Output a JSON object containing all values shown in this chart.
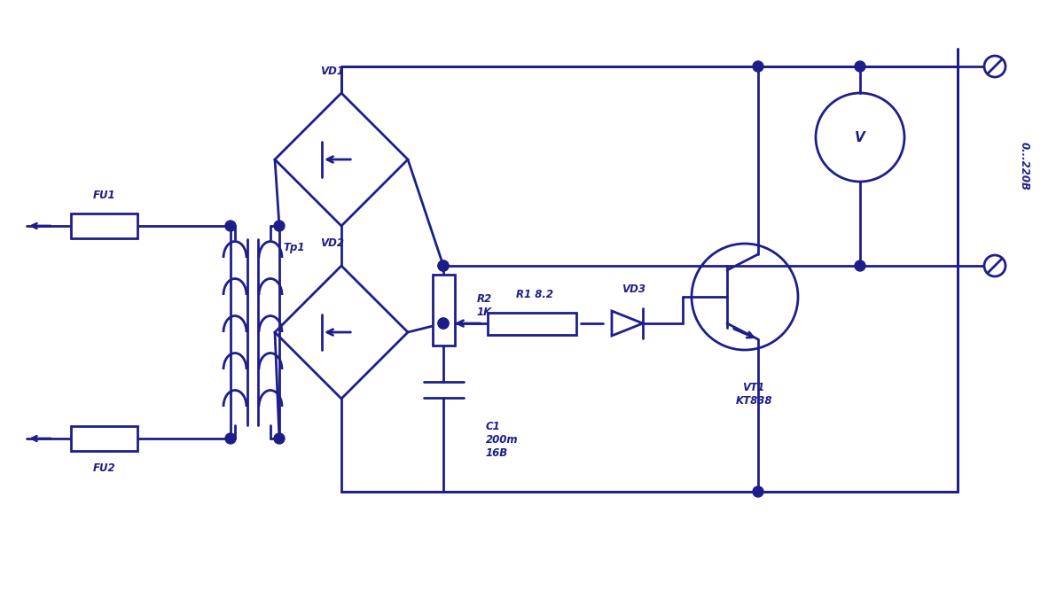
{
  "bg_color": "#ffffff",
  "line_color": "#1e1e8a",
  "line_width": 2.0,
  "label_color": "#1e1e8a",
  "components": {
    "FU1_label": "FU1",
    "FU2_label": "FU2",
    "Tp1_label": "Tp1",
    "VD1_label": "VD1",
    "VD2_label": "VD2",
    "VD3_label": "VD3",
    "R2_label": "R2\n1K",
    "R1_label": "R1 8.2",
    "C1_label": "C1\n200m\n16B",
    "VT1_label": "VT1\nKT838",
    "V_label": "V",
    "output_label": "0...220B"
  }
}
